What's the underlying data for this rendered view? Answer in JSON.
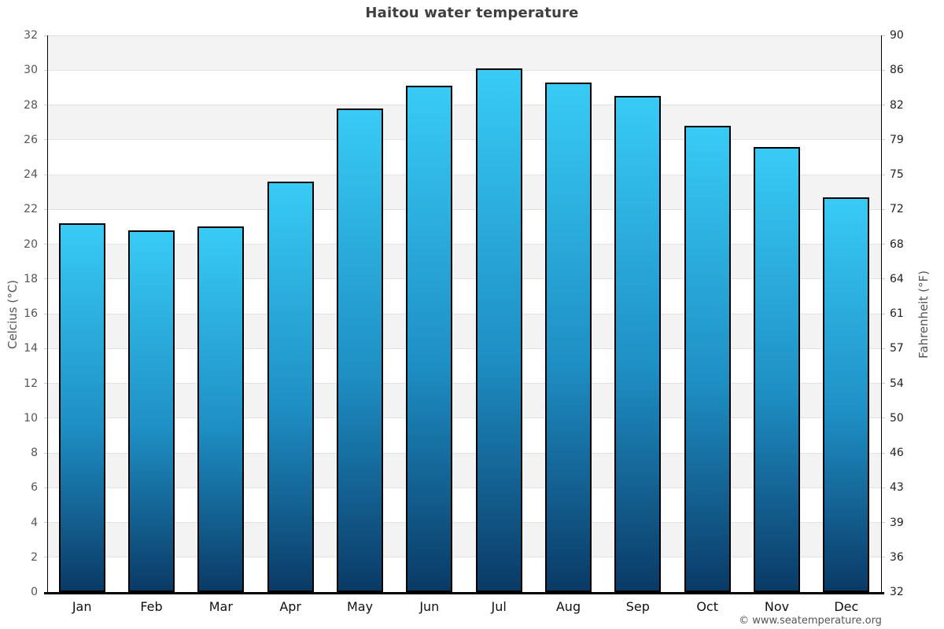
{
  "title": "Haitou water temperature",
  "footer": {
    "copyright": "© www.seatemperature.org"
  },
  "chart_data": {
    "type": "bar",
    "title": "Haitou water temperature",
    "categories": [
      "Jan",
      "Feb",
      "Mar",
      "Apr",
      "May",
      "Jun",
      "Jul",
      "Aug",
      "Sep",
      "Oct",
      "Nov",
      "Dec"
    ],
    "values": [
      21.2,
      20.8,
      21.0,
      23.6,
      27.8,
      29.1,
      30.1,
      29.3,
      28.5,
      26.8,
      25.6,
      22.7
    ],
    "ylabel_left": "Celcius (°C)",
    "ylabel_right": "Fahrenheit (°F)",
    "yaxis_left": {
      "min": 0,
      "max": 32,
      "tick_step": 2,
      "ticks": [
        "32",
        "30",
        "28",
        "26",
        "24",
        "22",
        "20",
        "18",
        "16",
        "14",
        "12",
        "10",
        "8",
        "6",
        "4",
        "2",
        "0"
      ]
    },
    "yaxis_right": {
      "ticks": [
        "90",
        "86",
        "82",
        "79",
        "75",
        "72",
        "68",
        "64",
        "61",
        "57",
        "54",
        "50",
        "46",
        "43",
        "39",
        "36",
        "32"
      ]
    },
    "grid": "horizontal-alternating-bands",
    "legend": false,
    "colors": {
      "bar_gradient_top": "#38cbf5",
      "bar_gradient_mid": "#1e8fc4",
      "bar_gradient_bottom": "#0a3a66",
      "bar_border": "#000000",
      "band_gray": "#f3f3f3",
      "band_white": "#ffffff",
      "gridline": "#e2e2e2",
      "axis": "#000000",
      "title_text": "#3f3f3f",
      "tick_left_text": "#555555",
      "tick_right_text": "#222222",
      "month_text": "#111111",
      "copyright_text": "#555555"
    }
  }
}
